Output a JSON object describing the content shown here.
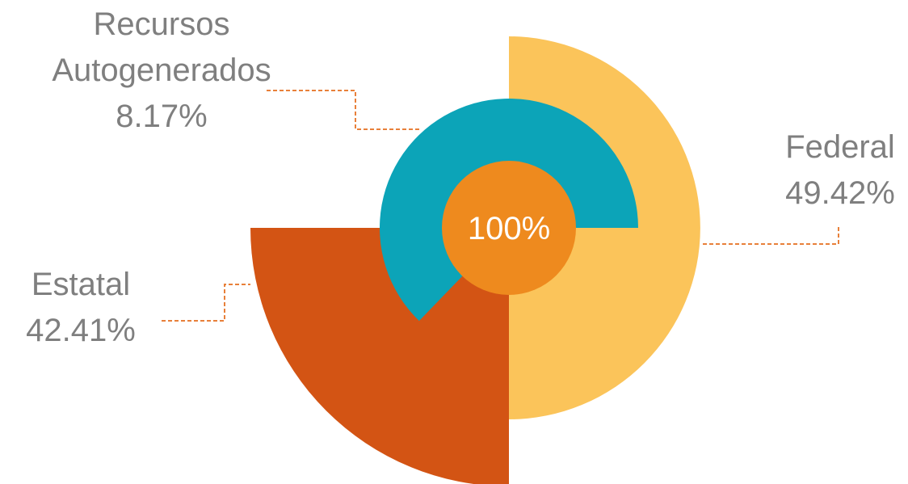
{
  "chart_data": {
    "type": "pie",
    "categories": [
      "Federal",
      "Estatal",
      "Recursos Autogenerados"
    ],
    "values": [
      49.42,
      42.41,
      8.17
    ],
    "value_labels": [
      "49.42%",
      "42.41%",
      "8.17%"
    ],
    "colors": [
      "#fbc45a",
      "#d35414",
      "#0ca4b8"
    ],
    "center_value": 100,
    "center_label": "100%",
    "center_color": "#ee8a1e"
  }
}
